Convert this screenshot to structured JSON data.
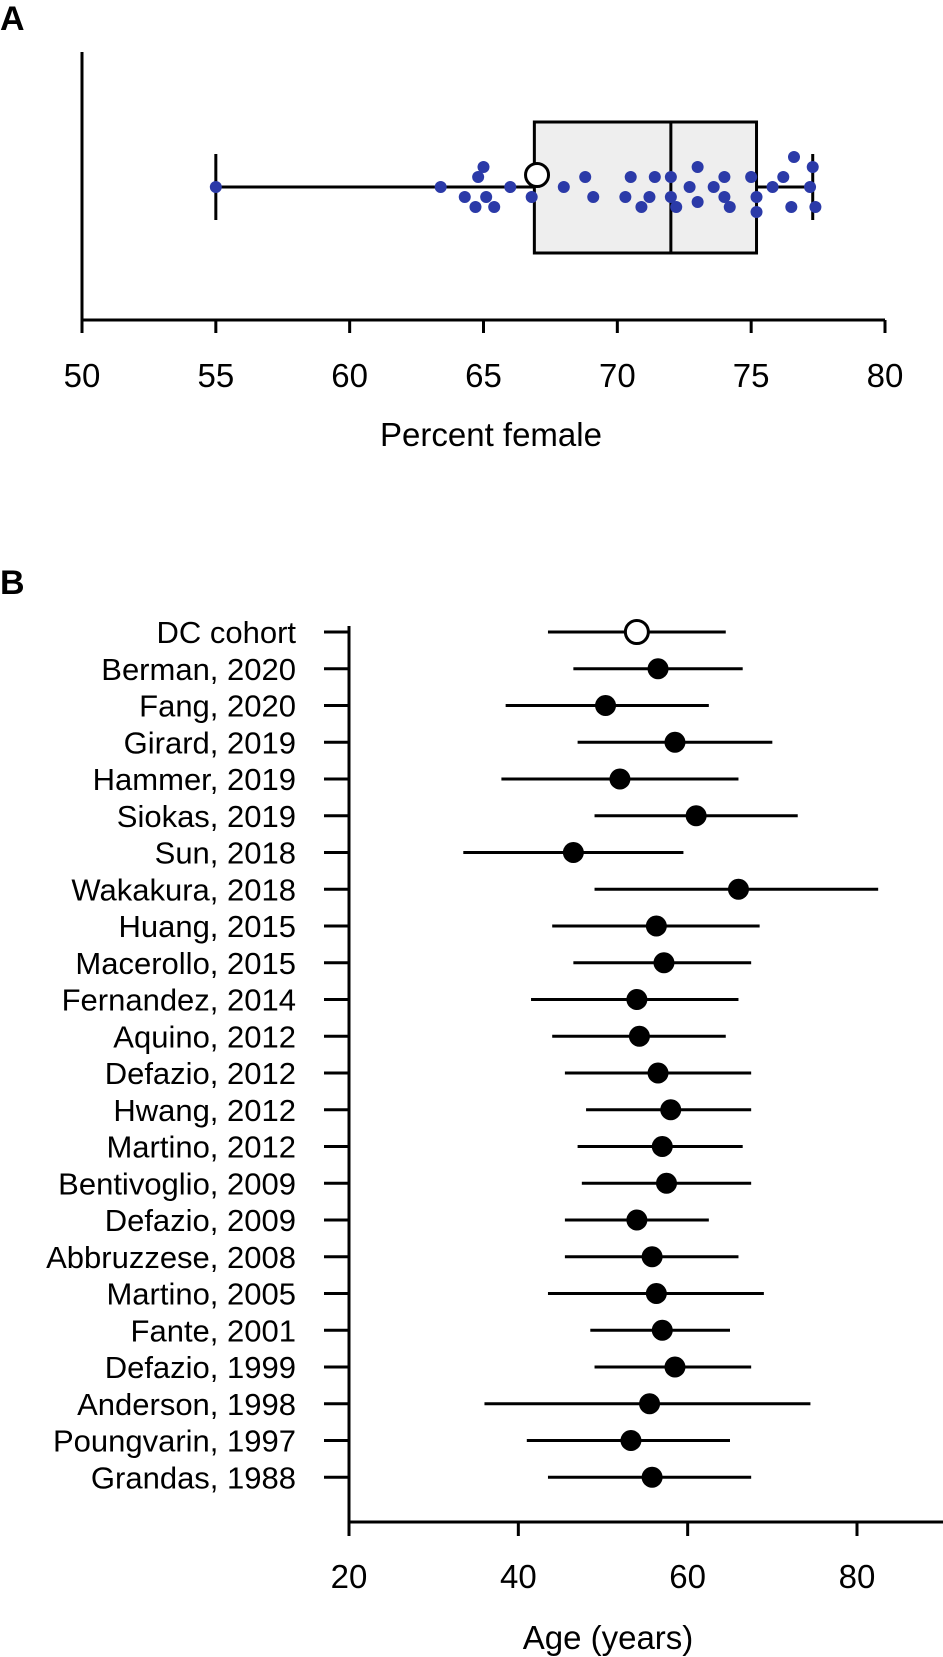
{
  "panels": {
    "a_letter": "A",
    "b_letter": "B"
  },
  "colors": {
    "point": "#2b3aa8",
    "box_fill": "#eeeeee",
    "line": "#000000",
    "open_marker": "#ffffff"
  },
  "chart_data": [
    {
      "type": "box",
      "panel": "A",
      "xlabel": "Percent female",
      "xlim": [
        50,
        80
      ],
      "xticks": [
        50,
        55,
        60,
        65,
        70,
        75,
        80
      ],
      "box": {
        "whisker_low": 55.0,
        "q1": 66.9,
        "median": 72.0,
        "q3": 75.2,
        "whisker_high": 77.3
      },
      "dc_cohort": 67.0,
      "points": [
        {
          "x": 55.0,
          "j": 0
        },
        {
          "x": 63.4,
          "j": 0
        },
        {
          "x": 64.3,
          "j": 1
        },
        {
          "x": 64.7,
          "j": 2
        },
        {
          "x": 64.8,
          "j": -1
        },
        {
          "x": 65.0,
          "j": -2
        },
        {
          "x": 65.1,
          "j": 1
        },
        {
          "x": 65.4,
          "j": 2
        },
        {
          "x": 66.0,
          "j": 0
        },
        {
          "x": 66.8,
          "j": 1
        },
        {
          "x": 68.0,
          "j": 0
        },
        {
          "x": 68.8,
          "j": -1
        },
        {
          "x": 69.1,
          "j": 1
        },
        {
          "x": 70.3,
          "j": 1
        },
        {
          "x": 70.5,
          "j": -1
        },
        {
          "x": 70.9,
          "j": 2
        },
        {
          "x": 71.2,
          "j": 1
        },
        {
          "x": 71.4,
          "j": -1
        },
        {
          "x": 72.0,
          "j": -1
        },
        {
          "x": 72.0,
          "j": 1
        },
        {
          "x": 72.2,
          "j": 2
        },
        {
          "x": 72.7,
          "j": 0
        },
        {
          "x": 73.0,
          "j": -2
        },
        {
          "x": 73.0,
          "j": 1.5
        },
        {
          "x": 73.6,
          "j": 0
        },
        {
          "x": 74.0,
          "j": -1
        },
        {
          "x": 74.0,
          "j": 1
        },
        {
          "x": 74.2,
          "j": 2
        },
        {
          "x": 75.0,
          "j": -1
        },
        {
          "x": 75.2,
          "j": 1
        },
        {
          "x": 75.2,
          "j": 2.5
        },
        {
          "x": 75.8,
          "j": 0
        },
        {
          "x": 76.2,
          "j": -1
        },
        {
          "x": 76.5,
          "j": 2
        },
        {
          "x": 76.6,
          "j": -3
        },
        {
          "x": 77.2,
          "j": 0
        },
        {
          "x": 77.3,
          "j": -2
        },
        {
          "x": 77.4,
          "j": 2
        }
      ]
    },
    {
      "type": "forest",
      "panel": "B",
      "xlabel": "Age (years)",
      "xlim": [
        20,
        90
      ],
      "xticks": [
        20,
        40,
        60,
        80
      ],
      "studies": [
        {
          "label": "DC cohort",
          "mean": 54.0,
          "low": 43.5,
          "high": 64.5,
          "open": true
        },
        {
          "label": "Berman, 2020",
          "mean": 56.5,
          "low": 46.5,
          "high": 66.5
        },
        {
          "label": "Fang, 2020",
          "mean": 50.3,
          "low": 38.5,
          "high": 62.5
        },
        {
          "label": "Girard, 2019",
          "mean": 58.5,
          "low": 47.0,
          "high": 70.0
        },
        {
          "label": "Hammer, 2019",
          "mean": 52.0,
          "low": 38.0,
          "high": 66.0
        },
        {
          "label": "Siokas, 2019",
          "mean": 61.0,
          "low": 49.0,
          "high": 73.0
        },
        {
          "label": "Sun, 2018",
          "mean": 46.5,
          "low": 33.5,
          "high": 59.5
        },
        {
          "label": "Wakakura, 2018",
          "mean": 66.0,
          "low": 49.0,
          "high": 82.5
        },
        {
          "label": "Huang, 2015",
          "mean": 56.3,
          "low": 44.0,
          "high": 68.5
        },
        {
          "label": "Macerollo, 2015",
          "mean": 57.2,
          "low": 46.5,
          "high": 67.5
        },
        {
          "label": "Fernandez, 2014",
          "mean": 54.0,
          "low": 41.5,
          "high": 66.0
        },
        {
          "label": "Aquino, 2012",
          "mean": 54.3,
          "low": 44.0,
          "high": 64.5
        },
        {
          "label": "Defazio, 2012",
          "mean": 56.5,
          "low": 45.5,
          "high": 67.5
        },
        {
          "label": "Hwang, 2012",
          "mean": 58.0,
          "low": 48.0,
          "high": 67.5
        },
        {
          "label": "Martino, 2012",
          "mean": 57.0,
          "low": 47.0,
          "high": 66.5
        },
        {
          "label": "Bentivoglio, 2009",
          "mean": 57.5,
          "low": 47.5,
          "high": 67.5
        },
        {
          "label": "Defazio, 2009",
          "mean": 54.0,
          "low": 45.5,
          "high": 62.5
        },
        {
          "label": "Abbruzzese, 2008",
          "mean": 55.8,
          "low": 45.5,
          "high": 66.0
        },
        {
          "label": "Martino, 2005",
          "mean": 56.3,
          "low": 43.5,
          "high": 69.0
        },
        {
          "label": "Fante, 2001",
          "mean": 57.0,
          "low": 48.5,
          "high": 65.0
        },
        {
          "label": "Defazio, 1999",
          "mean": 58.5,
          "low": 49.0,
          "high": 67.5
        },
        {
          "label": "Anderson, 1998",
          "mean": 55.5,
          "low": 36.0,
          "high": 74.5
        },
        {
          "label": "Poungvarin, 1997",
          "mean": 53.3,
          "low": 41.0,
          "high": 65.0
        },
        {
          "label": "Grandas, 1988",
          "mean": 55.8,
          "low": 43.5,
          "high": 67.5
        }
      ]
    }
  ]
}
